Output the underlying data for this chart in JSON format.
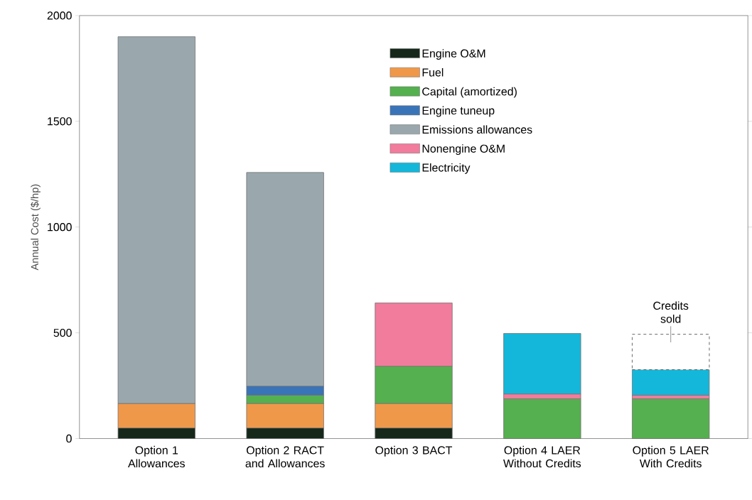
{
  "chart_data": {
    "type": "bar",
    "stacked": true,
    "ylabel": "Annual Cost ($/hp)",
    "categories": [
      "Option 1 Allowances",
      "Option 2 RACT and Allowances",
      "Option 3 BACT",
      "Option 4 LAER Without Credits",
      "Option 5 LAER With Credits"
    ],
    "series": [
      {
        "name": "Engine O&M",
        "color": "#15281a",
        "values": [
          50,
          50,
          50,
          null,
          null
        ]
      },
      {
        "name": "Fuel",
        "color": "#f0984a",
        "values": [
          116,
          116,
          116,
          null,
          null
        ]
      },
      {
        "name": "Capital (amortized)",
        "color": "#55b04f",
        "values": [
          null,
          39,
          176,
          188,
          188
        ]
      },
      {
        "name": "Engine tuneup",
        "color": "#3a74b8",
        "values": [
          null,
          43,
          null,
          null,
          null
        ]
      },
      {
        "name": "Emissions allowances",
        "color": "#9aa8ad",
        "values": [
          1734,
          1010,
          null,
          null,
          null
        ]
      },
      {
        "name": "Nonengine O&M",
        "color": "#f17c9c",
        "values": [
          null,
          null,
          299,
          23,
          17
        ]
      },
      {
        "name": "Electricity",
        "color": "#14b7d9",
        "values": [
          null,
          null,
          null,
          286,
          121
        ]
      },
      {
        "color": "#ffffff",
        "line_style": "dashed",
        "values": [
          null,
          null,
          null,
          null,
          167
        ]
      }
    ],
    "ylim": [
      0,
      2000
    ],
    "yticks": [
      0,
      500,
      1000,
      1500,
      2000
    ],
    "legend": "top right",
    "annotations": [
      {
        "text": "Credits sold",
        "x": "Option 5 LAER With Credits",
        "y": 493
      }
    ]
  }
}
